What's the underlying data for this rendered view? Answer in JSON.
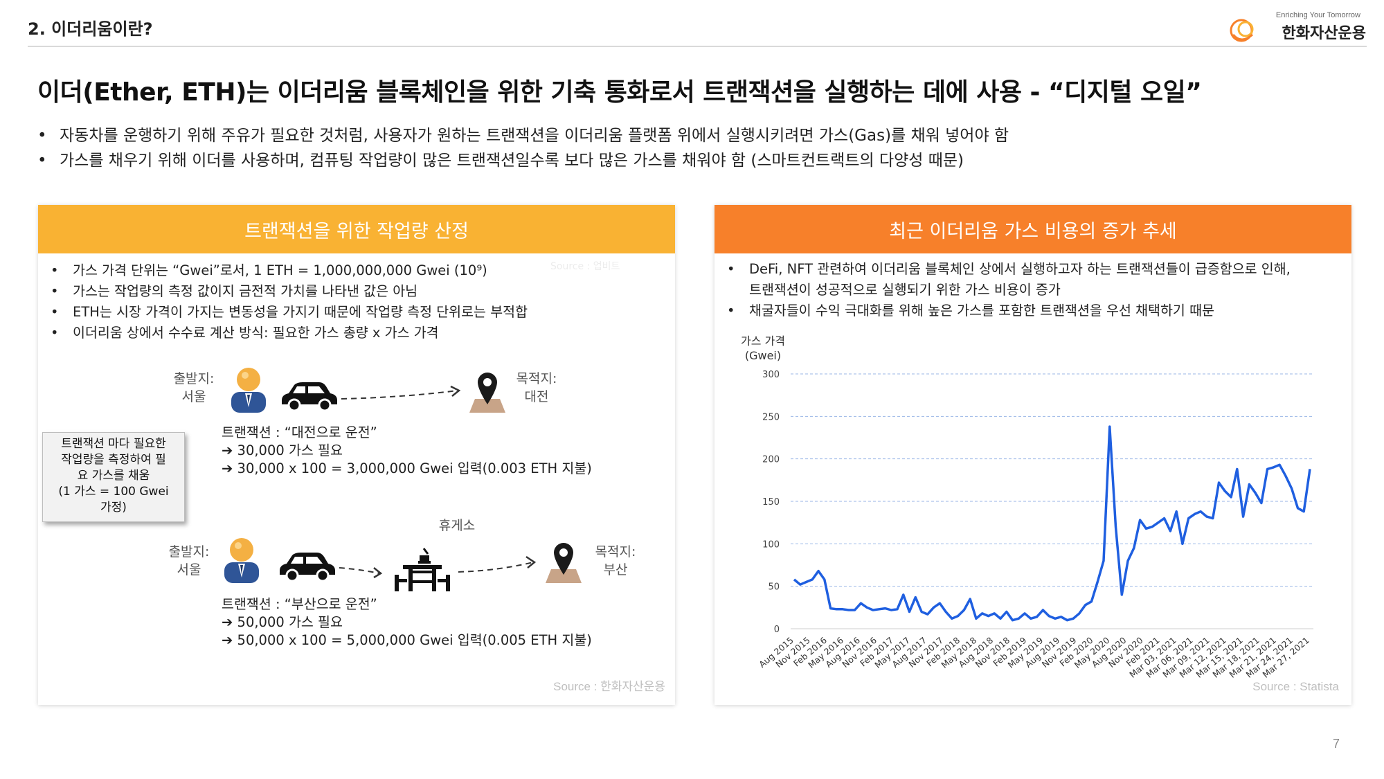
{
  "header": {
    "section": "2. 이더리움이란?",
    "logo_tagline": "Enriching Your Tomorrow",
    "logo_name": "한화자산운용"
  },
  "title": "이더(Ether, ETH)는 이더리움 블록체인을 위한 기축 통화로서 트랜잭션을 실행하는 데에 사용 - “디지털 오일”",
  "intro_bullets": [
    "자동차를 운행하기 위해 주유가 필요한 것처럼, 사용자가 원하는 트랜잭션을 이더리움 플랫폼 위에서 실행시키려면 가스(Gas)를 채워 넣어야 함",
    "가스를 채우기 위해 이더를 사용하며, 컴퓨팅 작업량이 많은 트랜잭션일수록 보다 많은 가스를 채워야 함 (스마트컨트랙트의 다양성 때문)"
  ],
  "left_panel": {
    "header": "트랜잭션을 위한 작업량 산정",
    "bullets": [
      "가스 가격 단위는 “Gwei”로서, 1 ETH = 1,000,000,000 Gwei (10⁹)",
      "가스는 작업량의 측정 값이지 금전적 가치를 나타낸 값은 아님",
      "ETH는 시장 가격이 가지는 변동성을 가지기 때문에 작업량 측정 단위로는 부적합",
      "이더리움 상에서 수수료 계산 방식: 필요한 가스 총량 x 가스 가격"
    ],
    "faded_text": "Source : 업비트",
    "route1": {
      "origin_label": "출발지:",
      "origin": "서울",
      "dest_label": "목적지:",
      "dest": "대전",
      "lines": [
        "트랜잭션 : “대전으로 운전”",
        "➔ 30,000 가스 필요",
        "➔ 30,000 x 100 = 3,000,000 Gwei 입력(0.003 ETH 지불)"
      ]
    },
    "callout_lines": [
      "트랜잭션 마다 필요한",
      "작업량을 측정하여 필",
      "요 가스를 채움",
      "(1 가스 = 100 Gwei",
      "가정)"
    ],
    "route2": {
      "rest_stop": "휴게소",
      "origin_label": "출발지:",
      "origin": "서울",
      "dest_label": "목적지:",
      "dest": "부산",
      "lines": [
        "트랜잭션 : “부산으로 운전”",
        "➔ 50,000 가스 필요",
        "➔ 50,000 x 100 = 5,000,000 Gwei 입력(0.005 ETH 지불)"
      ]
    },
    "source": "Source : 한화자산운용"
  },
  "right_panel": {
    "header": "최근 이더리움 가스 비용의 증가 추세",
    "bullets": [
      "DeFi, NFT 관련하여 이더리움 블록체인 상에서 실행하고자 하는 트랜잭션들이 급증함으로 인해,",
      "트랜잭션이 성공적으로 실행되기 위한 가스 비용이 증가",
      "채굴자들이 수익 극대화를 위해 높은 가스를 포함한 트랜잭션을 우선 채택하기 때문"
    ],
    "source": "Source : Statista"
  },
  "chart_data": {
    "type": "line",
    "title": "",
    "ylabel": "가스 가격\n(Gwei)",
    "ylim": [
      0,
      300
    ],
    "yticks": [
      0,
      50,
      100,
      150,
      200,
      250,
      300
    ],
    "grid": true,
    "line_color": "#1f5fe0",
    "x_tick_labels": [
      "Aug 2015",
      "Nov 2015",
      "Feb 2016",
      "May 2016",
      "Aug 2016",
      "Nov 2016",
      "Feb 2017",
      "May 2017",
      "Aug 2017",
      "Nov 2017",
      "Feb 2018",
      "May 2018",
      "Aug 2018",
      "Nov 2018",
      "Feb 2019",
      "May 2019",
      "Aug 2019",
      "Nov 2019",
      "Feb 2020",
      "May 2020",
      "Aug 2020",
      "Nov 2020",
      "Feb 2021",
      "Mar 03, 2021",
      "Mar 06, 2021",
      "Mar 09, 2021",
      "Mar 12, 2021",
      "Mar 15, 2021",
      "Mar 18, 2021",
      "Mar 21, 2021",
      "Mar 24, 2021",
      "Mar 27, 2021"
    ],
    "values": [
      58,
      52,
      55,
      58,
      68,
      58,
      24,
      23,
      23,
      22,
      22,
      30,
      25,
      22,
      23,
      24,
      22,
      23,
      40,
      20,
      37,
      20,
      17,
      25,
      30,
      20,
      12,
      15,
      22,
      35,
      12,
      18,
      15,
      18,
      12,
      20,
      10,
      12,
      18,
      12,
      14,
      22,
      15,
      12,
      14,
      10,
      12,
      18,
      28,
      32,
      55,
      80,
      238,
      120,
      40,
      80,
      95,
      128,
      118,
      120,
      125,
      130,
      115,
      138,
      100,
      130,
      135,
      138,
      132,
      130,
      172,
      162,
      155,
      188,
      132,
      170,
      160,
      148,
      188,
      190,
      193,
      180,
      165,
      142,
      138,
      188
    ]
  },
  "page_number": "7"
}
